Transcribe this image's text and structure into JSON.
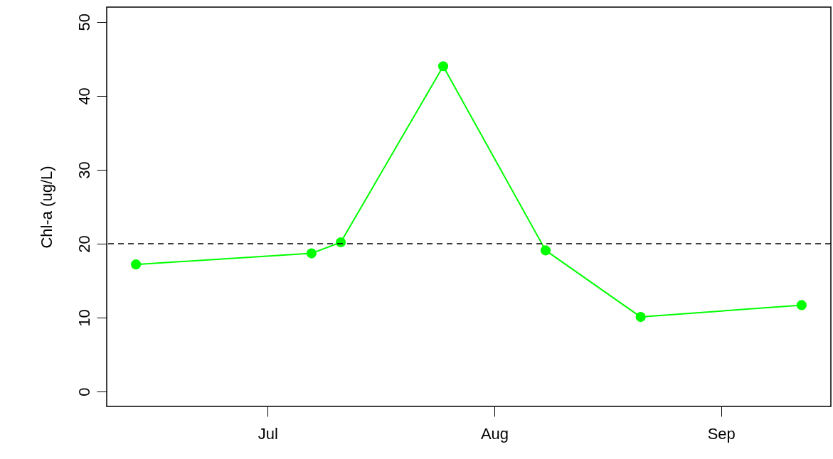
{
  "chart_data": {
    "type": "line",
    "ylabel": "Chl-a (ug/L)",
    "x": [
      "--06-13",
      "--07-07",
      "--07-11",
      "--07-25",
      "--08-08",
      "--08-21",
      "--09-12"
    ],
    "series": [
      {
        "color": "#00ff00",
        "values": [
          17.2,
          18.7,
          20.2,
          44.0,
          19.1,
          10.1,
          11.7
        ]
      }
    ],
    "xlim": [
      "--06-09",
      "--09-16"
    ],
    "xticks": [
      {
        "value": "--07-01",
        "label": "Jul"
      },
      {
        "value": "--08-01",
        "label": "Aug"
      },
      {
        "value": "--09-01",
        "label": "Sep"
      }
    ],
    "ylim": [
      -2,
      52
    ],
    "yticks": [
      0,
      10,
      20,
      30,
      40,
      50
    ],
    "ref_lines": [
      {
        "axis": "y",
        "value": 20,
        "color": "#000000",
        "line_style": "dashed"
      }
    ],
    "marker": "circle",
    "grid": false
  }
}
